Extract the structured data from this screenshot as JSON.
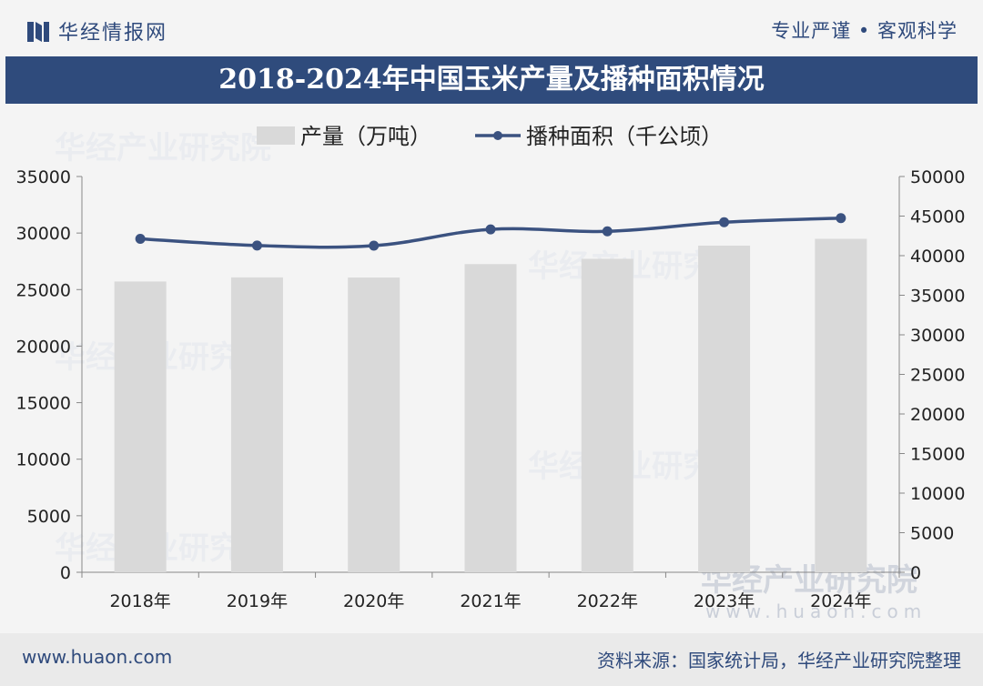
{
  "header": {
    "brand": "华经情报网",
    "slogan": "专业严谨 • 客观科学"
  },
  "footer": {
    "url": "www.huaon.com",
    "source": "资料来源：国家统计局，华经产业研究院整理"
  },
  "watermark": {
    "text": "华经产业研究院",
    "url": "www.huaon.com"
  },
  "colors": {
    "bar": "#d9d9d9",
    "line": "#3b5280",
    "title_band": "#2f4b7c"
  },
  "chart_data": {
    "type": "bar",
    "title": "2018-2024年中国玉米产量及播种面积情况",
    "categories": [
      "2018年",
      "2019年",
      "2020年",
      "2021年",
      "2022年",
      "2023年",
      "2024年"
    ],
    "series": [
      {
        "name": "产量（万吨）",
        "type": "bar",
        "axis": "left",
        "values": [
          25717,
          26078,
          26067,
          27255,
          27720,
          28884,
          29492
        ]
      },
      {
        "name": "播种面积（千公顷）",
        "type": "line",
        "axis": "right",
        "values": [
          42130,
          41284,
          41264,
          43324,
          43070,
          44219,
          44741
        ]
      }
    ],
    "y_left": {
      "min": 0,
      "max": 35000,
      "ticks": [
        "0",
        "5000",
        "10000",
        "15000",
        "20000",
        "25000",
        "30000",
        "35000"
      ]
    },
    "y_right": {
      "min": 0,
      "max": 50000,
      "ticks": [
        "0",
        "5000",
        "10000",
        "15000",
        "20000",
        "25000",
        "30000",
        "35000",
        "40000",
        "45000",
        "50000"
      ]
    },
    "legend_position": "top-center",
    "grid": false
  }
}
